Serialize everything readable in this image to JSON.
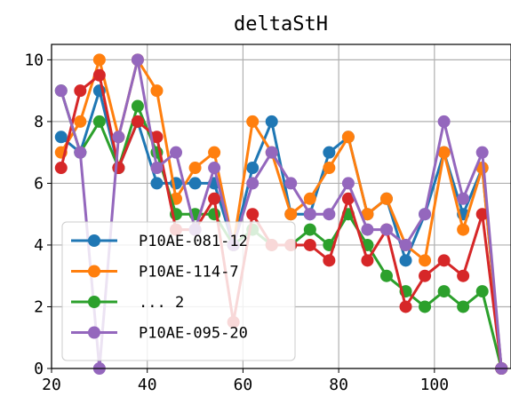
{
  "chart_data": {
    "type": "line",
    "title": "deltaStH",
    "xlabel": "",
    "ylabel": "",
    "xlim": [
      20,
      116
    ],
    "ylim": [
      0,
      10.5
    ],
    "xticks": [
      20,
      40,
      60,
      80,
      100
    ],
    "yticks": [
      0,
      2,
      4,
      6,
      8,
      10
    ],
    "grid": true,
    "legend_position": "lower-left",
    "series": [
      {
        "name": "P10AE-081-12",
        "color": "#1f77b4",
        "x": [
          22,
          26,
          30,
          34,
          38,
          42,
          46,
          50,
          54,
          58,
          62,
          66,
          70,
          74,
          78,
          82,
          86,
          90,
          94,
          98,
          102,
          106,
          110,
          114
        ],
        "y": [
          7.5,
          7,
          9,
          6.5,
          8,
          6,
          6,
          6,
          6,
          4,
          6.5,
          8,
          5,
          5,
          7,
          7.5,
          5,
          5.5,
          3.5,
          5,
          7,
          5,
          6.5,
          0
        ]
      },
      {
        "name": "P10AE-114-7",
        "color": "#ff7f0e",
        "x": [
          22,
          26,
          30,
          34,
          38,
          42,
          46,
          50,
          54,
          58,
          62,
          66,
          70,
          74,
          78,
          82,
          86,
          90,
          94,
          98,
          102,
          106,
          110,
          114
        ],
        "y": [
          7,
          8,
          10,
          7.5,
          10,
          9,
          5.5,
          6.5,
          7,
          4,
          8,
          7,
          5,
          5.5,
          6.5,
          7.5,
          5,
          5.5,
          4,
          3.5,
          7,
          4.5,
          6.5,
          0
        ]
      },
      {
        "name": "... 2",
        "color": "#2ca02c",
        "x": [
          22,
          26,
          30,
          34,
          38,
          42,
          46,
          50,
          54,
          58,
          62,
          66,
          70,
          74,
          78,
          82,
          86,
          90,
          94,
          98,
          102,
          106,
          110,
          114
        ],
        "y": [
          9,
          7,
          8,
          6.5,
          8.5,
          7,
          5,
          5,
          5,
          4,
          4.5,
          4,
          4,
          4.5,
          4,
          5,
          4,
          3,
          2.5,
          2,
          2.5,
          2,
          2.5,
          0
        ]
      },
      {
        "name": "",
        "color": "#d62728",
        "x": [
          22,
          26,
          30,
          34,
          38,
          42,
          46,
          50,
          54,
          58,
          62,
          66,
          70,
          74,
          78,
          82,
          86,
          90,
          94,
          98,
          102,
          106,
          110,
          114
        ],
        "y": [
          6.5,
          9,
          9.5,
          6.5,
          8,
          7.5,
          4.5,
          4.5,
          5.5,
          1.5,
          5,
          4,
          4,
          4,
          3.5,
          5.5,
          3.5,
          4.5,
          2,
          3,
          3.5,
          3,
          5,
          0
        ]
      },
      {
        "name": "P10AE-095-20",
        "color": "#9467bd",
        "x": [
          22,
          26,
          30,
          34,
          38,
          42,
          46,
          50,
          54,
          58,
          62,
          66,
          70,
          74,
          78,
          82,
          86,
          90,
          94,
          98,
          102,
          106,
          110,
          114
        ],
        "y": [
          9,
          7,
          0,
          7.5,
          10,
          6.5,
          7,
          4.5,
          6.5,
          4,
          6,
          7,
          6,
          5,
          5,
          6,
          4.5,
          4.5,
          4,
          5,
          8,
          5.5,
          7,
          0
        ]
      }
    ]
  }
}
